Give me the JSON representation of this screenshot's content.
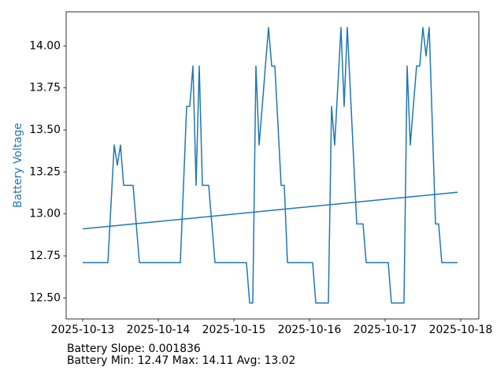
{
  "colors": {
    "line": "#1f77b4",
    "trend": "#1f77b4",
    "axis": "#000000",
    "ylabel": "#1f77b4",
    "background": "#ffffff"
  },
  "chart_data": {
    "type": "line",
    "title": "",
    "xlabel": "",
    "ylabel": "Battery Voltage",
    "grid": false,
    "legend": "none",
    "ylim": [
      12.37,
      14.21
    ],
    "y_ticks": [
      12.5,
      12.75,
      13.0,
      13.25,
      13.5,
      13.75,
      14.0
    ],
    "y_tick_labels": [
      "12.50",
      "12.75",
      "13.00",
      "13.25",
      "13.50",
      "13.75",
      "14.00"
    ],
    "x_tick_labels": [
      "2025-10-13",
      "2025-10-14",
      "2025-10-15",
      "2025-10-16",
      "2025-10-17",
      "2025-10-18"
    ],
    "samples_per_day": 24,
    "x_unit": "hours since 2025-10-13 00:00",
    "series": [
      {
        "name": "Battery Voltage",
        "values": [
          12.71,
          12.71,
          12.71,
          12.71,
          12.71,
          12.71,
          12.71,
          12.71,
          12.71,
          13.06,
          13.41,
          13.29,
          13.41,
          13.17,
          13.17,
          13.17,
          13.17,
          12.94,
          12.71,
          12.71,
          12.71,
          12.71,
          12.71,
          12.71,
          12.71,
          12.71,
          12.71,
          12.71,
          12.71,
          12.71,
          12.71,
          12.71,
          13.17,
          13.64,
          13.64,
          13.88,
          13.17,
          13.88,
          13.17,
          13.17,
          13.17,
          12.94,
          12.71,
          12.71,
          12.71,
          12.71,
          12.71,
          12.71,
          12.71,
          12.71,
          12.71,
          12.71,
          12.71,
          12.47,
          12.47,
          13.88,
          13.41,
          13.64,
          13.88,
          14.11,
          13.88,
          13.88,
          13.53,
          13.17,
          13.17,
          12.71,
          12.71,
          12.71,
          12.71,
          12.71,
          12.71,
          12.71,
          12.71,
          12.71,
          12.47,
          12.47,
          12.47,
          12.47,
          12.47,
          13.64,
          13.41,
          13.76,
          14.11,
          13.64,
          14.11,
          13.72,
          13.33,
          12.94,
          12.94,
          12.94,
          12.71,
          12.71,
          12.71,
          12.71,
          12.71,
          12.71,
          12.71,
          12.71,
          12.47,
          12.47,
          12.47,
          12.47,
          12.47,
          13.88,
          13.41,
          13.65,
          13.88,
          13.88,
          14.11,
          13.94,
          14.11,
          13.53,
          12.94,
          12.94,
          12.71,
          12.71,
          12.71,
          12.71,
          12.71,
          12.71
        ]
      },
      {
        "name": "Trend",
        "intercept": 12.9107,
        "slope_per_sample": 0.001836,
        "n": 120
      }
    ],
    "stats": {
      "slope": "0.001836",
      "min": "12.47",
      "max": "14.11",
      "avg": "13.02"
    },
    "annotations": [
      "Battery Slope: 0.001836",
      "Battery Min: 12.47 Max: 14.11 Avg: 13.02"
    ]
  }
}
